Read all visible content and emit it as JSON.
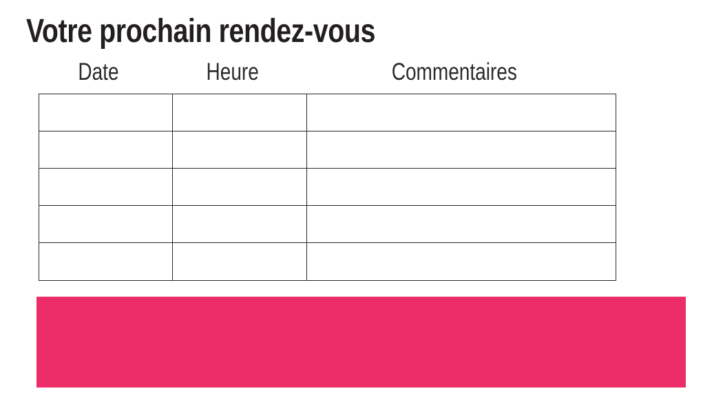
{
  "title": "Votre prochain rendez-vous",
  "table": {
    "headers": [
      "Date",
      "Heure",
      "Commentaires"
    ],
    "row_count": 5,
    "rows": [
      [
        "",
        "",
        ""
      ],
      [
        "",
        "",
        ""
      ],
      [
        "",
        "",
        ""
      ],
      [
        "",
        "",
        ""
      ],
      [
        "",
        "",
        ""
      ]
    ]
  },
  "colors": {
    "accent_pink": "#ed2d69",
    "table_border": "#2a2628",
    "title_color": "#231f20",
    "header_text_color": "#2d2a2b",
    "background": "#ffffff"
  }
}
